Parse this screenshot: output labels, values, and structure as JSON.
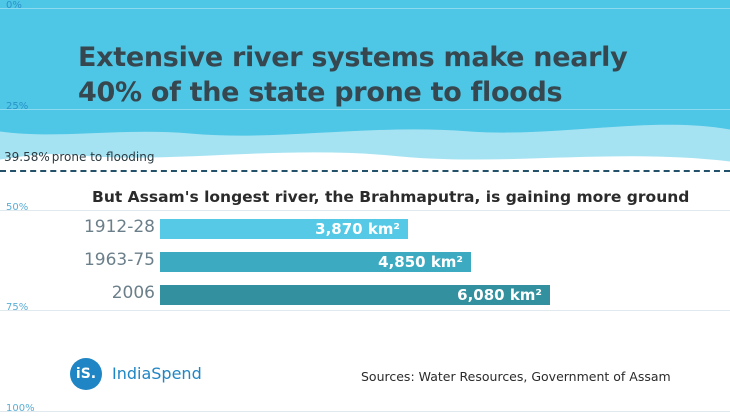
{
  "title": "Extensive river systems make nearly 40% of the state prone to floods",
  "flood_marker": {
    "value": "39.58%",
    "label": "prone to flooding"
  },
  "subtitle": "But Assam's longest river, the Brahmaputra, is gaining more ground",
  "y_ticks": [
    "0%",
    "25%",
    "50%",
    "75%",
    "100%"
  ],
  "source": "Sources: Water Resources, Government of Assam",
  "brand": {
    "logo_text": "iS.",
    "name": "IndiaSpend"
  },
  "colors": {
    "water_dark": "#4ec6e6",
    "water_light": "#a6e3f2",
    "bar_1": "#55c9e6",
    "bar_2": "#3cabc2",
    "bar_3": "#33909f"
  },
  "chart_data": [
    {
      "type": "area",
      "ylim": [
        0,
        100
      ],
      "y_ticks": [
        0,
        25,
        50,
        75,
        100
      ],
      "unit": "%",
      "value": 39.58,
      "annotation": "39.58% prone to flooding",
      "title": "Extensive river systems make nearly 40% of the state prone to floods"
    },
    {
      "type": "bar",
      "orientation": "horizontal",
      "title": "But Assam's longest river, the Brahmaputra, is gaining more ground",
      "categories": [
        "1912-28",
        "1963-75",
        "2006"
      ],
      "values": [
        3870,
        4850,
        6080
      ],
      "value_labels": [
        "3,870 km²",
        "4,850 km²",
        "6,080 km²"
      ],
      "unit": "km²",
      "grid": true
    }
  ]
}
